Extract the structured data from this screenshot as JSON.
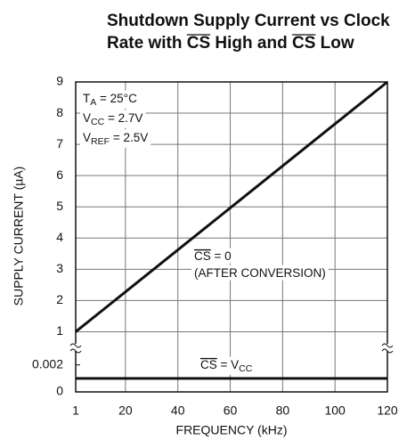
{
  "chart_data": {
    "type": "line",
    "title": [
      [
        {
          "text": "Shutdown Supply Current vs Clock"
        }
      ],
      [
        {
          "text": "Rate with "
        },
        {
          "text": "CS",
          "style": "over"
        },
        {
          "text": " High and "
        },
        {
          "text": "CS",
          "style": "over"
        },
        {
          "text": " Low"
        }
      ]
    ],
    "x_label": "FREQUENCY (kHz)",
    "y_label": "SUPPLY CURRENT (µA)",
    "xlim": [
      1,
      120
    ],
    "xticks": [
      1,
      20,
      40,
      60,
      80,
      100,
      120
    ],
    "ylim": [
      0.5,
      9
    ],
    "yticks": [
      1,
      2,
      3,
      4,
      5,
      6,
      7,
      8,
      9
    ],
    "lower_axis": {
      "ylim": [
        0,
        0.0033
      ],
      "yticks": [
        0,
        0.002
      ]
    },
    "grid": true,
    "series": [
      {
        "color": "#111111",
        "panel": "upper",
        "x": [
          1,
          120
        ],
        "values": [
          1,
          9
        ]
      },
      {
        "color": "#111111",
        "panel": "lower",
        "x": [
          1,
          120
        ],
        "values": [
          0.001,
          0.001
        ]
      }
    ],
    "annotations": [
      [
        {
          "text": "T"
        },
        {
          "text": "A",
          "style": "sub"
        },
        {
          "text": " = 25°C"
        }
      ],
      [
        {
          "text": "V"
        },
        {
          "text": "CC",
          "style": "sub"
        },
        {
          "text": " = 2.7V"
        }
      ],
      [
        {
          "text": "V"
        },
        {
          "text": "REF",
          "style": "sub"
        },
        {
          "text": " = 2.5V"
        }
      ],
      [
        {
          "text": "CS",
          "style": "over"
        },
        {
          "text": " = 0"
        }
      ],
      [
        {
          "text": "(AFTER CONVERSION)"
        }
      ],
      [
        {
          "text": "CS",
          "style": "over"
        },
        {
          "text": " = V"
        },
        {
          "text": "CC",
          "style": "sub"
        }
      ]
    ]
  }
}
